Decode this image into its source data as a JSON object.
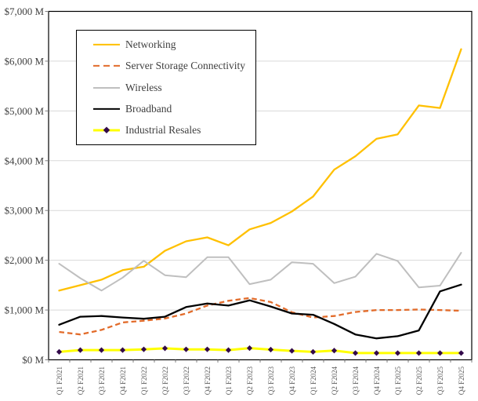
{
  "chart_data": {
    "type": "line",
    "title": "",
    "xlabel": "",
    "ylabel": "",
    "ylim": [
      0,
      7000
    ],
    "grid": true,
    "legend_position": "top-left-inside",
    "categories": [
      "Q1 F2021",
      "Q2 F2021",
      "Q3 F2021",
      "Q4 F2021",
      "Q1 F2022",
      "Q2 F2022",
      "Q3 F2022",
      "Q4 F2022",
      "Q1 F2023",
      "Q2 F2023",
      "Q3 F2023",
      "Q4 F2023",
      "Q1 F2024",
      "Q2 F2024",
      "Q3 F2024",
      "Q4 F2024",
      "Q1 F2025",
      "Q2 F2025",
      "Q3 F2025",
      "Q4 F2025"
    ],
    "y_ticks": [
      {
        "label": "$0 M",
        "value": 0
      },
      {
        "label": "$1,000 M",
        "value": 1000
      },
      {
        "label": "$2,000 M",
        "value": 2000
      },
      {
        "label": "$3,000 M",
        "value": 3000
      },
      {
        "label": "$4,000 M",
        "value": 4000
      },
      {
        "label": "$5,000 M",
        "value": 5000
      },
      {
        "label": "$6,000 M",
        "value": 6000
      },
      {
        "label": "$7,000 M",
        "value": 7000
      }
    ],
    "series": [
      {
        "name": "Networking",
        "color": "#FFC000",
        "style": "solid",
        "line_width": 2.3,
        "values": [
          1390,
          1500,
          1610,
          1800,
          1870,
          2190,
          2380,
          2460,
          2300,
          2620,
          2750,
          2980,
          3280,
          3820,
          4090,
          4440,
          4530,
          5110,
          5060,
          6240
        ]
      },
      {
        "name": "Server Storage Connectivity",
        "color": "#E26B2A",
        "style": "dashed",
        "line_width": 2.3,
        "values": [
          560,
          510,
          600,
          750,
          785,
          830,
          930,
          1090,
          1185,
          1240,
          1160,
          955,
          850,
          880,
          960,
          1000,
          1000,
          1010,
          1000,
          985
        ]
      },
      {
        "name": "Wireless",
        "color": "#BFBFBF",
        "style": "solid",
        "line_width": 2,
        "values": [
          1930,
          1640,
          1390,
          1650,
          1990,
          1700,
          1660,
          2060,
          2060,
          1520,
          1610,
          1960,
          1930,
          1540,
          1670,
          2130,
          1985,
          1455,
          1490,
          2150
        ]
      },
      {
        "name": "Broadband",
        "color": "#000000",
        "style": "solid",
        "line_width": 2.3,
        "values": [
          705,
          865,
          880,
          850,
          825,
          865,
          1060,
          1130,
          1090,
          1195,
          1070,
          930,
          905,
          720,
          510,
          430,
          475,
          590,
          1375,
          1510
        ]
      },
      {
        "name": "Industrial Resales",
        "color": "#FFFF00",
        "style": "solid",
        "marker": "diamond",
        "marker_color": "#330A4A",
        "line_width": 3,
        "values": [
          160,
          195,
          195,
          195,
          210,
          230,
          210,
          210,
          195,
          235,
          205,
          180,
          160,
          185,
          135,
          135,
          135,
          135,
          135,
          135
        ]
      }
    ],
    "axis_colors": {
      "grid": "#D9D9D9",
      "axis_box": "#000000",
      "tick": "#7f7f7f",
      "y_label_text": "#3f3f3f",
      "x_label_text": "#595959"
    }
  }
}
